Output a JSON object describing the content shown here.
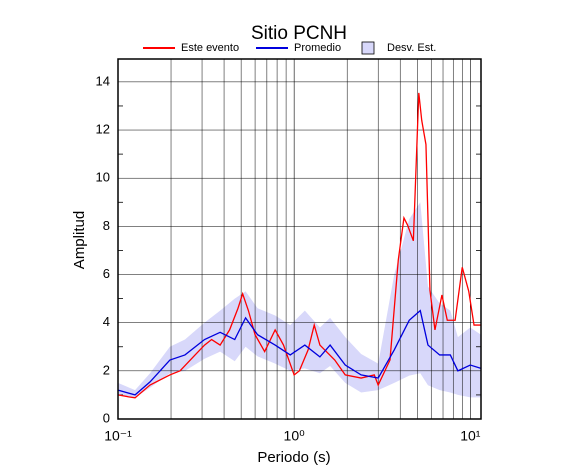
{
  "chart_data": {
    "type": "line",
    "title": "Sitio PCNH",
    "xlabel": "Periodo (s)",
    "ylabel": "Amplitud",
    "xscale": "log",
    "xlim": [
      0.1,
      11.5
    ],
    "ylim": [
      0,
      14.95
    ],
    "xticks": [
      {
        "value": 0.1,
        "label": "10⁻¹"
      },
      {
        "value": 1,
        "label": "10⁰"
      },
      {
        "value": 10,
        "label": "10¹"
      }
    ],
    "xminorticks": [
      0.2,
      0.3,
      0.4,
      0.5,
      0.6,
      0.7,
      0.8,
      0.9,
      2,
      3,
      4,
      5,
      6,
      7,
      8,
      9
    ],
    "yticks": [
      0,
      2,
      4,
      6,
      8,
      10,
      12,
      14
    ],
    "yminorticks": [
      1,
      3,
      5,
      7,
      9,
      11,
      13
    ],
    "grid": true,
    "series": [
      {
        "name": "Este evento",
        "color": "#ff0000",
        "x": [
          0.1,
          0.115,
          0.125,
          0.152,
          0.197,
          0.225,
          0.274,
          0.31,
          0.34,
          0.38,
          0.43,
          0.48,
          0.51,
          0.55,
          0.6,
          0.68,
          0.78,
          0.87,
          1.0,
          1.07,
          1.2,
          1.3,
          1.4,
          1.7,
          1.95,
          2.4,
          2.85,
          3.0,
          3.5,
          3.9,
          4.2,
          4.4,
          4.75,
          5.1,
          5.3,
          5.6,
          5.9,
          6.3,
          6.9,
          7.4,
          8.2,
          9.0,
          9.8,
          10.5,
          11.5
        ],
        "values": [
          1.0,
          0.92,
          0.88,
          1.41,
          1.83,
          2.0,
          2.66,
          3.07,
          3.3,
          3.07,
          3.7,
          4.6,
          5.2,
          4.5,
          3.5,
          2.8,
          3.7,
          3.07,
          1.83,
          2.0,
          2.87,
          3.9,
          3.07,
          2.45,
          1.83,
          1.7,
          1.83,
          1.41,
          2.45,
          6.6,
          8.35,
          8.06,
          7.4,
          13.54,
          12.4,
          11.4,
          5.35,
          3.7,
          5.15,
          4.1,
          4.1,
          6.3,
          5.3,
          3.9,
          3.9
        ]
      },
      {
        "name": "Promedio",
        "color": "#0000dd",
        "x": [
          0.1,
          0.125,
          0.152,
          0.197,
          0.24,
          0.31,
          0.38,
          0.46,
          0.53,
          0.62,
          0.78,
          0.95,
          1.15,
          1.4,
          1.6,
          1.95,
          2.4,
          3.0,
          3.7,
          4.5,
          5.2,
          5.75,
          6.7,
          7.7,
          8.5,
          10,
          11.5
        ],
        "values": [
          1.2,
          1.0,
          1.54,
          2.45,
          2.66,
          3.3,
          3.6,
          3.3,
          4.2,
          3.5,
          3.07,
          2.66,
          3.07,
          2.58,
          3.07,
          2.24,
          1.83,
          1.7,
          2.87,
          4.1,
          4.5,
          3.07,
          2.66,
          2.66,
          2.0,
          2.24,
          2.1
        ]
      }
    ],
    "band": {
      "name": "Desv. Est.",
      "color": "#d8d8fa",
      "x": [
        0.1,
        0.125,
        0.152,
        0.197,
        0.24,
        0.31,
        0.38,
        0.46,
        0.53,
        0.62,
        0.78,
        0.95,
        1.15,
        1.4,
        1.6,
        1.95,
        2.4,
        3.0,
        3.7,
        4.5,
        5.2,
        5.75,
        6.7,
        7.7,
        8.5,
        10,
        11.5
      ],
      "lower": [
        1.0,
        0.9,
        1.3,
        1.9,
        2.0,
        2.5,
        2.8,
        2.4,
        3.0,
        2.6,
        2.3,
        2.0,
        2.1,
        1.9,
        2.2,
        1.5,
        1.1,
        1.2,
        1.5,
        1.8,
        1.9,
        1.4,
        1.2,
        1.1,
        1.0,
        0.9,
        0.9
      ],
      "upper": [
        1.5,
        1.2,
        1.9,
        3.0,
        3.3,
        4.0,
        4.5,
        5.0,
        5.3,
        4.6,
        4.3,
        3.9,
        4.5,
        3.8,
        4.2,
        3.4,
        2.7,
        2.3,
        6.0,
        8.3,
        9.0,
        5.5,
        4.8,
        4.5,
        3.4,
        3.8,
        3.5
      ]
    }
  }
}
